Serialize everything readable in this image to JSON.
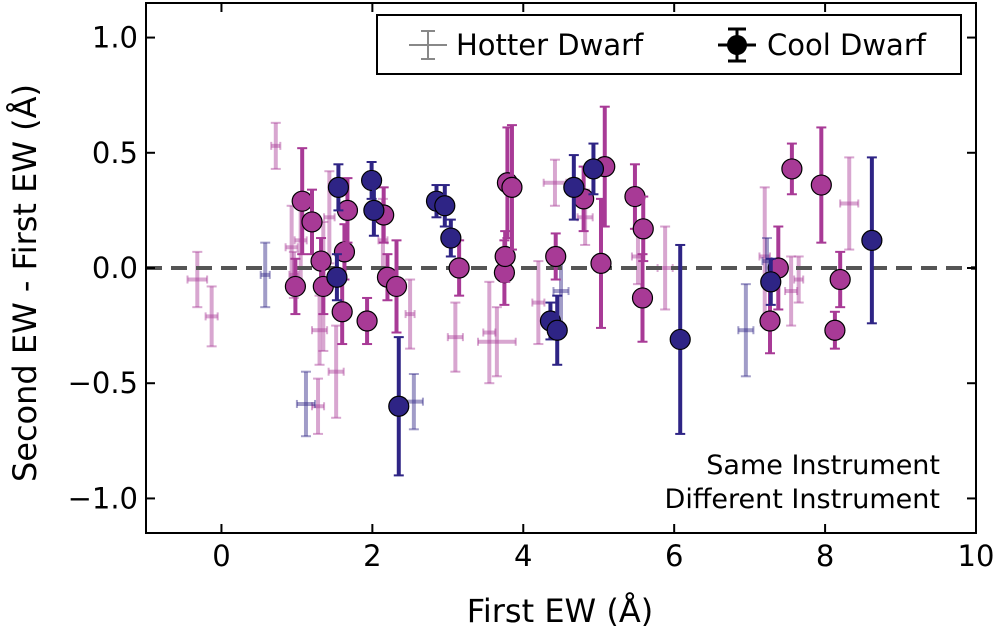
{
  "chart_data": {
    "type": "scatter",
    "xlabel": "First EW (Å)",
    "ylabel": "Second EW - First EW (Å)",
    "xlim": [
      -1.0,
      10.0
    ],
    "ylim": [
      -1.15,
      1.15
    ],
    "xticks": [
      0,
      2,
      4,
      6,
      8,
      10
    ],
    "xtick_labels": [
      "0",
      "2",
      "4",
      "6",
      "8",
      "10"
    ],
    "yticks": [
      -1.0,
      -0.5,
      0.0,
      0.5,
      1.0
    ],
    "ytick_labels": [
      "−1.0",
      "−0.5",
      "0.0",
      "0.5",
      "1.0"
    ],
    "reference_line": {
      "y": 0.0,
      "style": "dashed",
      "color": "#555555"
    },
    "legend": {
      "position": "top-right",
      "entries": [
        {
          "label": "Hotter Dwarf",
          "marker": "errorbar-only"
        },
        {
          "label": "Cool Dwarf",
          "marker": "filled-circle"
        }
      ]
    },
    "annotations": [
      {
        "text": "Same Instrument",
        "color": "#b5449d"
      },
      {
        "text": "Different Instrument",
        "color": "#312589"
      }
    ],
    "colors": {
      "same": "#a83a96",
      "different": "#2e2485"
    },
    "series": [
      {
        "name": "Cool Dwarf - Same Instrument",
        "points": [
          {
            "x": 0.98,
            "y": -0.08,
            "xerr": 0.05,
            "yerr": 0.12
          },
          {
            "x": 1.07,
            "y": 0.29,
            "xerr": 0.05,
            "yerr": 0.23
          },
          {
            "x": 1.2,
            "y": 0.2,
            "xerr": 0.05,
            "yerr": 0.14
          },
          {
            "x": 1.32,
            "y": 0.03,
            "xerr": 0.05,
            "yerr": 0.1
          },
          {
            "x": 1.35,
            "y": -0.08,
            "xerr": 0.05,
            "yerr": 0.12
          },
          {
            "x": 1.6,
            "y": -0.19,
            "xerr": 0.05,
            "yerr": 0.14
          },
          {
            "x": 1.63,
            "y": 0.07,
            "xerr": 0.05,
            "yerr": 0.12
          },
          {
            "x": 1.67,
            "y": 0.25,
            "xerr": 0.05,
            "yerr": 0.14
          },
          {
            "x": 1.93,
            "y": -0.23,
            "xerr": 0.05,
            "yerr": 0.1
          },
          {
            "x": 2.15,
            "y": 0.23,
            "xerr": 0.05,
            "yerr": 0.12
          },
          {
            "x": 2.2,
            "y": -0.04,
            "xerr": 0.05,
            "yerr": 0.1
          },
          {
            "x": 2.32,
            "y": -0.08,
            "xerr": 0.05,
            "yerr": 0.2
          },
          {
            "x": 3.15,
            "y": 0.0,
            "xerr": 0.05,
            "yerr": 0.12
          },
          {
            "x": 3.75,
            "y": -0.02,
            "xerr": 0.05,
            "yerr": 0.14
          },
          {
            "x": 3.76,
            "y": 0.05,
            "xerr": 0.05,
            "yerr": 0.11
          },
          {
            "x": 3.79,
            "y": 0.37,
            "xerr": 0.05,
            "yerr": 0.24
          },
          {
            "x": 3.85,
            "y": 0.35,
            "xerr": 0.05,
            "yerr": 0.27
          },
          {
            "x": 4.43,
            "y": 0.05,
            "xerr": 0.05,
            "yerr": 0.1
          },
          {
            "x": 4.8,
            "y": 0.3,
            "xerr": 0.05,
            "yerr": 0.14
          },
          {
            "x": 5.03,
            "y": 0.02,
            "xerr": 0.05,
            "yerr": 0.28
          },
          {
            "x": 5.08,
            "y": 0.44,
            "xerr": 0.05,
            "yerr": 0.26
          },
          {
            "x": 5.48,
            "y": 0.31,
            "xerr": 0.05,
            "yerr": 0.14
          },
          {
            "x": 5.58,
            "y": -0.13,
            "xerr": 0.05,
            "yerr": 0.19
          },
          {
            "x": 5.59,
            "y": 0.17,
            "xerr": 0.05,
            "yerr": 0.14
          },
          {
            "x": 7.27,
            "y": -0.23,
            "xerr": 0.05,
            "yerr": 0.14
          },
          {
            "x": 7.38,
            "y": 0.0,
            "xerr": 0.05,
            "yerr": 0.18
          },
          {
            "x": 7.56,
            "y": 0.43,
            "xerr": 0.05,
            "yerr": 0.11
          },
          {
            "x": 7.95,
            "y": 0.36,
            "xerr": 0.05,
            "yerr": 0.25
          },
          {
            "x": 8.13,
            "y": -0.27,
            "xerr": 0.05,
            "yerr": 0.08
          },
          {
            "x": 8.2,
            "y": -0.05,
            "xerr": 0.05,
            "yerr": 0.12
          }
        ]
      },
      {
        "name": "Cool Dwarf - Different Instrument",
        "points": [
          {
            "x": 1.55,
            "y": 0.35,
            "xerr": 0.05,
            "yerr": 0.1
          },
          {
            "x": 1.53,
            "y": -0.04,
            "xerr": 0.05,
            "yerr": 0.1
          },
          {
            "x": 1.99,
            "y": 0.38,
            "xerr": 0.05,
            "yerr": 0.08
          },
          {
            "x": 2.02,
            "y": 0.25,
            "xerr": 0.05,
            "yerr": 0.11
          },
          {
            "x": 2.35,
            "y": -0.6,
            "xerr": 0.08,
            "yerr": 0.3
          },
          {
            "x": 2.85,
            "y": 0.29,
            "xerr": 0.06,
            "yerr": 0.07
          },
          {
            "x": 2.96,
            "y": 0.27,
            "xerr": 0.05,
            "yerr": 0.09
          },
          {
            "x": 3.04,
            "y": 0.13,
            "xerr": 0.05,
            "yerr": 0.08
          },
          {
            "x": 4.36,
            "y": -0.23,
            "xerr": 0.05,
            "yerr": 0.08
          },
          {
            "x": 4.45,
            "y": -0.27,
            "xerr": 0.05,
            "yerr": 0.15
          },
          {
            "x": 4.67,
            "y": 0.35,
            "xerr": 0.05,
            "yerr": 0.14
          },
          {
            "x": 4.93,
            "y": 0.43,
            "xerr": 0.06,
            "yerr": 0.11
          },
          {
            "x": 6.08,
            "y": -0.31,
            "xerr": 0.08,
            "yerr": 0.41
          },
          {
            "x": 7.28,
            "y": -0.06,
            "xerr": 0.05,
            "yerr": 0.1
          },
          {
            "x": 8.62,
            "y": 0.12,
            "xerr": 0.12,
            "yerr": 0.36
          }
        ]
      },
      {
        "name": "Hotter Dwarf - Same Instrument",
        "points": [
          {
            "x": -0.32,
            "y": -0.05,
            "xerr": 0.13,
            "yerr": 0.12
          },
          {
            "x": -0.13,
            "y": -0.21,
            "xerr": 0.08,
            "yerr": 0.13
          },
          {
            "x": 0.72,
            "y": 0.53,
            "xerr": 0.06,
            "yerr": 0.1
          },
          {
            "x": 0.93,
            "y": 0.09,
            "xerr": 0.08,
            "yerr": 0.18
          },
          {
            "x": 0.96,
            "y": -0.03,
            "xerr": 0.06,
            "yerr": 0.1
          },
          {
            "x": 1.05,
            "y": 0.12,
            "xerr": 0.08,
            "yerr": 0.2
          },
          {
            "x": 1.28,
            "y": -0.6,
            "xerr": 0.08,
            "yerr": 0.12
          },
          {
            "x": 1.3,
            "y": -0.27,
            "xerr": 0.1,
            "yerr": 0.15
          },
          {
            "x": 1.35,
            "y": -0.08,
            "xerr": 0.06,
            "yerr": 0.28
          },
          {
            "x": 1.43,
            "y": 0.22,
            "xerr": 0.07,
            "yerr": 0.2
          },
          {
            "x": 1.52,
            "y": -0.45,
            "xerr": 0.1,
            "yerr": 0.2
          },
          {
            "x": 2.14,
            "y": 0.12,
            "xerr": 0.06,
            "yerr": 0.18
          },
          {
            "x": 2.5,
            "y": -0.2,
            "xerr": 0.06,
            "yerr": 0.15
          },
          {
            "x": 3.1,
            "y": -0.3,
            "xerr": 0.1,
            "yerr": 0.15
          },
          {
            "x": 3.55,
            "y": -0.28,
            "xerr": 0.08,
            "yerr": 0.22
          },
          {
            "x": 3.65,
            "y": -0.32,
            "xerr": 0.25,
            "yerr": 0.15
          },
          {
            "x": 4.2,
            "y": -0.15,
            "xerr": 0.08,
            "yerr": 0.18
          },
          {
            "x": 4.42,
            "y": 0.37,
            "xerr": 0.15,
            "yerr": 0.1
          },
          {
            "x": 4.82,
            "y": 0.22,
            "xerr": 0.1,
            "yerr": 0.12
          },
          {
            "x": 5.52,
            "y": 0.05,
            "xerr": 0.08,
            "yerr": 0.12
          },
          {
            "x": 5.88,
            "y": 0.0,
            "xerr": 0.1,
            "yerr": 0.18
          },
          {
            "x": 7.2,
            "y": 0.05,
            "xerr": 0.07,
            "yerr": 0.3
          },
          {
            "x": 7.55,
            "y": -0.1,
            "xerr": 0.08,
            "yerr": 0.15
          },
          {
            "x": 7.65,
            "y": -0.05,
            "xerr": 0.06,
            "yerr": 0.1
          },
          {
            "x": 8.32,
            "y": 0.28,
            "xerr": 0.12,
            "yerr": 0.2
          }
        ]
      },
      {
        "name": "Hotter Dwarf - Different Instrument",
        "points": [
          {
            "x": 0.58,
            "y": -0.03,
            "xerr": 0.06,
            "yerr": 0.14
          },
          {
            "x": 1.12,
            "y": -0.59,
            "xerr": 0.12,
            "yerr": 0.14
          },
          {
            "x": 2.55,
            "y": -0.58,
            "xerr": 0.12,
            "yerr": 0.12
          },
          {
            "x": 4.5,
            "y": -0.1,
            "xerr": 0.1,
            "yerr": 0.15
          },
          {
            "x": 6.95,
            "y": -0.27,
            "xerr": 0.1,
            "yerr": 0.2
          },
          {
            "x": 7.23,
            "y": 0.03,
            "xerr": 0.06,
            "yerr": 0.1
          }
        ]
      }
    ]
  }
}
